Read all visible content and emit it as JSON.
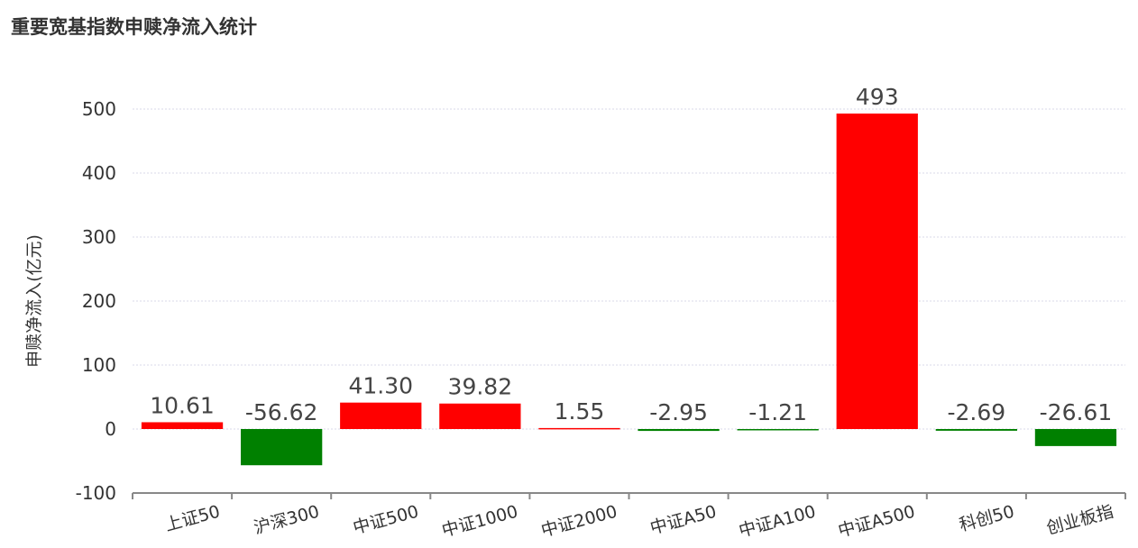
{
  "chart_data": {
    "type": "bar",
    "title": "重要宽基指数申赎净流入统计",
    "ylabel": "申赎净流入(亿元)",
    "xlabel": "",
    "categories": [
      "上证50",
      "沪深300",
      "中证500",
      "中证1000",
      "中证2000",
      "中证A50",
      "中证A100",
      "中证A500",
      "科创50",
      "创业板指"
    ],
    "values": [
      10.61,
      -56.62,
      41.3,
      39.82,
      1.55,
      -2.95,
      -1.21,
      493,
      -2.69,
      -26.61
    ],
    "data_labels": [
      "10.61",
      "-56.62",
      "41.30",
      "39.82",
      "1.55",
      "-2.95",
      "-1.21",
      "493",
      "-2.69",
      "-26.61"
    ],
    "ylim": [
      -100,
      500
    ],
    "yticks": [
      -100,
      0,
      100,
      200,
      300,
      400,
      500
    ],
    "grid": true,
    "colors": {
      "positive": "#ff0000",
      "negative": "#008000",
      "grid": "#d8d8e8",
      "axis": "#888888"
    }
  }
}
